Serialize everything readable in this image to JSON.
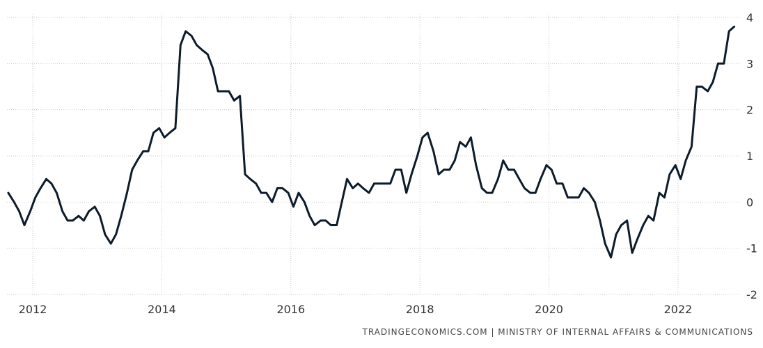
{
  "chart_data": {
    "type": "line",
    "title": "",
    "xlabel": "",
    "ylabel": "",
    "xlim": [
      2011.6,
      2022.95
    ],
    "ylim": [
      -2,
      4
    ],
    "y_ticks": [
      "4",
      "3",
      "2",
      "1",
      "0",
      "-1",
      "-2"
    ],
    "y_tick_values": [
      4,
      3,
      2,
      1,
      0,
      -1,
      -2
    ],
    "x_ticks": [
      "2012",
      "2014",
      "2016",
      "2018",
      "2020",
      "2022"
    ],
    "x_tick_values": [
      2012,
      2014,
      2016,
      2018,
      2020,
      2022
    ],
    "grid": true,
    "line_color": "#0d1b2a",
    "grid_color": "#c8c8c8",
    "series": [
      {
        "x": [
          2011.62,
          2011.71,
          2011.79,
          2011.87,
          2011.96,
          2012.04,
          2012.12,
          2012.21,
          2012.29,
          2012.37,
          2012.46,
          2012.54,
          2012.62,
          2012.71,
          2012.79,
          2012.87,
          2012.96,
          2013.04,
          2013.12,
          2013.21,
          2013.29,
          2013.37,
          2013.46,
          2013.54,
          2013.62,
          2013.71,
          2013.79,
          2013.87,
          2013.96,
          2014.04,
          2014.12,
          2014.21,
          2014.29,
          2014.37,
          2014.46,
          2014.54,
          2014.62,
          2014.71,
          2014.79,
          2014.87,
          2014.96,
          2015.04,
          2015.12,
          2015.21,
          2015.29,
          2015.37,
          2015.46,
          2015.54,
          2015.62,
          2015.71,
          2015.79,
          2015.87,
          2015.96,
          2016.04,
          2016.12,
          2016.21,
          2016.29,
          2016.37,
          2016.46,
          2016.54,
          2016.62,
          2016.71,
          2016.79,
          2016.87,
          2016.96,
          2017.04,
          2017.12,
          2017.21,
          2017.29,
          2017.37,
          2017.46,
          2017.54,
          2017.62,
          2017.71,
          2017.79,
          2017.87,
          2017.96,
          2018.04,
          2018.12,
          2018.21,
          2018.29,
          2018.37,
          2018.46,
          2018.54,
          2018.62,
          2018.71,
          2018.79,
          2018.87,
          2018.96,
          2019.04,
          2019.12,
          2019.21,
          2019.29,
          2019.37,
          2019.46,
          2019.54,
          2019.62,
          2019.71,
          2019.79,
          2019.87,
          2019.96,
          2020.04,
          2020.12,
          2020.21,
          2020.29,
          2020.37,
          2020.46,
          2020.54,
          2020.62,
          2020.71,
          2020.79,
          2020.87,
          2020.96,
          2021.04,
          2021.12,
          2021.21,
          2021.29,
          2021.37,
          2021.46,
          2021.54,
          2021.62,
          2021.71,
          2021.79,
          2021.87,
          2021.96,
          2022.04,
          2022.12,
          2022.21,
          2022.29,
          2022.37,
          2022.46,
          2022.54,
          2022.62,
          2022.71,
          2022.79,
          2022.87
        ],
        "values": [
          0.2,
          0.0,
          -0.2,
          -0.5,
          -0.2,
          0.1,
          0.3,
          0.5,
          0.4,
          0.2,
          -0.2,
          -0.4,
          -0.4,
          -0.3,
          -0.4,
          -0.2,
          -0.1,
          -0.3,
          -0.7,
          -0.9,
          -0.7,
          -0.3,
          0.2,
          0.7,
          0.9,
          1.1,
          1.1,
          1.5,
          1.6,
          1.4,
          1.5,
          1.6,
          3.4,
          3.7,
          3.6,
          3.4,
          3.3,
          3.2,
          2.9,
          2.4,
          2.4,
          2.4,
          2.2,
          2.3,
          0.6,
          0.5,
          0.4,
          0.2,
          0.2,
          0.0,
          0.3,
          0.3,
          0.2,
          -0.1,
          0.2,
          0.0,
          -0.3,
          -0.5,
          -0.4,
          -0.4,
          -0.5,
          -0.5,
          0.0,
          0.5,
          0.3,
          0.4,
          0.3,
          0.2,
          0.4,
          0.4,
          0.4,
          0.4,
          0.7,
          0.7,
          0.2,
          0.6,
          1.0,
          1.4,
          1.5,
          1.1,
          0.6,
          0.7,
          0.7,
          0.9,
          1.3,
          1.2,
          1.4,
          0.8,
          0.3,
          0.2,
          0.2,
          0.5,
          0.9,
          0.7,
          0.7,
          0.5,
          0.3,
          0.2,
          0.2,
          0.5,
          0.8,
          0.7,
          0.4,
          0.4,
          0.1,
          0.1,
          0.1,
          0.3,
          0.2,
          0.0,
          -0.4,
          -0.9,
          -1.2,
          -0.7,
          -0.5,
          -0.4,
          -1.1,
          -0.8,
          -0.5,
          -0.3,
          -0.4,
          0.2,
          0.1,
          0.6,
          0.8,
          0.5,
          0.9,
          1.2,
          2.5,
          2.5,
          2.4,
          2.6,
          3.0,
          3.0,
          3.7,
          3.8
        ]
      }
    ]
  },
  "source_text": "TRADINGECONOMICS.COM | MINISTRY OF INTERNAL AFFAIRS & COMMUNICATIONS"
}
